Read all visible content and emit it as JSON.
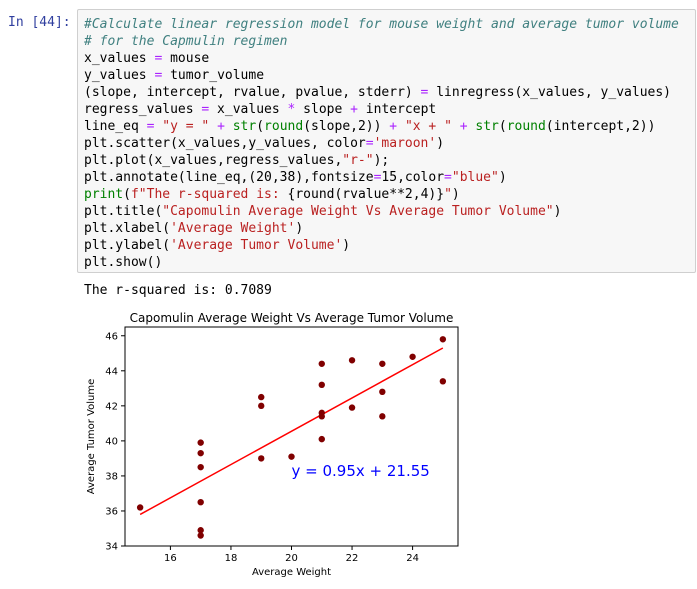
{
  "cell": {
    "prompt": "In [44]:",
    "code_lines": [
      [
        {
          "t": "#Calculate linear regression model for mouse weight and average tumor volume",
          "c": "comment"
        }
      ],
      [
        {
          "t": "# for the Capmulin regimen",
          "c": "comment"
        }
      ],
      [
        {
          "t": "x_values ",
          "c": "var"
        },
        {
          "t": "=",
          "c": "op"
        },
        {
          "t": " mouse",
          "c": "var"
        }
      ],
      [
        {
          "t": "y_values ",
          "c": "var"
        },
        {
          "t": "=",
          "c": "op"
        },
        {
          "t": " tumor_volume",
          "c": "var"
        }
      ],
      [
        {
          "t": "(slope, intercept, rvalue, pvalue, stderr) ",
          "c": "var"
        },
        {
          "t": "=",
          "c": "op"
        },
        {
          "t": " linregress(x_values, y_values)",
          "c": "var"
        }
      ],
      [
        {
          "t": "regress_values ",
          "c": "var"
        },
        {
          "t": "=",
          "c": "op"
        },
        {
          "t": " x_values ",
          "c": "var"
        },
        {
          "t": "*",
          "c": "op"
        },
        {
          "t": " slope ",
          "c": "var"
        },
        {
          "t": "+",
          "c": "op"
        },
        {
          "t": " intercept",
          "c": "var"
        }
      ],
      [
        {
          "t": "line_eq ",
          "c": "var"
        },
        {
          "t": "=",
          "c": "op"
        },
        {
          "t": " ",
          "c": "var"
        },
        {
          "t": "\"y = \"",
          "c": "str"
        },
        {
          "t": " ",
          "c": "var"
        },
        {
          "t": "+",
          "c": "op"
        },
        {
          "t": " ",
          "c": "var"
        },
        {
          "t": "str",
          "c": "builtin"
        },
        {
          "t": "(",
          "c": "var"
        },
        {
          "t": "round",
          "c": "builtin"
        },
        {
          "t": "(slope,2)) ",
          "c": "var"
        },
        {
          "t": "+",
          "c": "op"
        },
        {
          "t": " ",
          "c": "var"
        },
        {
          "t": "\"x + \"",
          "c": "str"
        },
        {
          "t": " ",
          "c": "var"
        },
        {
          "t": "+",
          "c": "op"
        },
        {
          "t": " ",
          "c": "var"
        },
        {
          "t": "str",
          "c": "builtin"
        },
        {
          "t": "(",
          "c": "var"
        },
        {
          "t": "round",
          "c": "builtin"
        },
        {
          "t": "(intercept,2))",
          "c": "var"
        }
      ],
      [
        {
          "t": "plt.scatter(x_values,y_values, color",
          "c": "var"
        },
        {
          "t": "=",
          "c": "op"
        },
        {
          "t": "'maroon'",
          "c": "str"
        },
        {
          "t": ")",
          "c": "var"
        }
      ],
      [
        {
          "t": "plt.plot(x_values,regress_values,",
          "c": "var"
        },
        {
          "t": "\"r-\"",
          "c": "str"
        },
        {
          "t": ");",
          "c": "var"
        }
      ],
      [
        {
          "t": "plt.annotate(line_eq,(20,38),fontsize",
          "c": "var"
        },
        {
          "t": "=",
          "c": "op"
        },
        {
          "t": "15,color",
          "c": "var"
        },
        {
          "t": "=",
          "c": "op"
        },
        {
          "t": "\"blue\"",
          "c": "str"
        },
        {
          "t": ")",
          "c": "var"
        }
      ],
      [
        {
          "t": "print",
          "c": "builtin"
        },
        {
          "t": "(",
          "c": "var"
        },
        {
          "t": "f\"The r-squared is: ",
          "c": "str"
        },
        {
          "t": "{round(rvalue**2,4)}",
          "c": "var"
        },
        {
          "t": "\"",
          "c": "str"
        },
        {
          "t": ")",
          "c": "var"
        }
      ],
      [
        {
          "t": "plt.title(",
          "c": "var"
        },
        {
          "t": "\"Capomulin Average Weight Vs Average Tumor Volume\"",
          "c": "str"
        },
        {
          "t": ")",
          "c": "var"
        }
      ],
      [
        {
          "t": "plt.xlabel(",
          "c": "var"
        },
        {
          "t": "'Average Weight'",
          "c": "str"
        },
        {
          "t": ")",
          "c": "var"
        }
      ],
      [
        {
          "t": "plt.ylabel(",
          "c": "var"
        },
        {
          "t": "'Average Tumor Volume'",
          "c": "str"
        },
        {
          "t": ")",
          "c": "var"
        }
      ],
      [
        {
          "t": "plt.show()",
          "c": "var"
        }
      ]
    ]
  },
  "output": {
    "text": "The r-squared is: 0.7089"
  },
  "colors": {
    "points": "#800000",
    "regression_line": "#ff0000",
    "annotation": "#0000ff"
  },
  "chart_data": {
    "type": "scatter",
    "title": "Capomulin Average Weight Vs Average Tumor Volume",
    "xlabel": "Average Weight",
    "ylabel": "Average Tumor Volume",
    "xlim": [
      14.5,
      25.5
    ],
    "ylim": [
      34,
      46.5
    ],
    "xticks": [
      16,
      18,
      20,
      22,
      24
    ],
    "yticks": [
      34,
      36,
      38,
      40,
      42,
      44,
      46
    ],
    "grid": false,
    "points": [
      [
        15,
        36.2
      ],
      [
        17,
        34.6
      ],
      [
        17,
        34.9
      ],
      [
        17,
        36.5
      ],
      [
        17,
        38.5
      ],
      [
        17,
        39.3
      ],
      [
        17,
        39.9
      ],
      [
        19,
        39.0
      ],
      [
        19,
        42.0
      ],
      [
        19,
        42.5
      ],
      [
        20,
        39.1
      ],
      [
        21,
        40.1
      ],
      [
        21,
        41.4
      ],
      [
        21,
        41.6
      ],
      [
        21,
        43.2
      ],
      [
        21,
        44.4
      ],
      [
        22,
        41.9
      ],
      [
        22,
        44.6
      ],
      [
        23,
        41.4
      ],
      [
        23,
        42.8
      ],
      [
        23,
        44.4
      ],
      [
        24,
        44.8
      ],
      [
        25,
        43.4
      ],
      [
        25,
        45.8
      ]
    ],
    "regression": {
      "slope": 0.95,
      "intercept": 21.55,
      "x_range": [
        15,
        25
      ]
    },
    "annotation": {
      "text": "y = 0.95x + 21.55",
      "x": 20,
      "y": 38
    }
  }
}
